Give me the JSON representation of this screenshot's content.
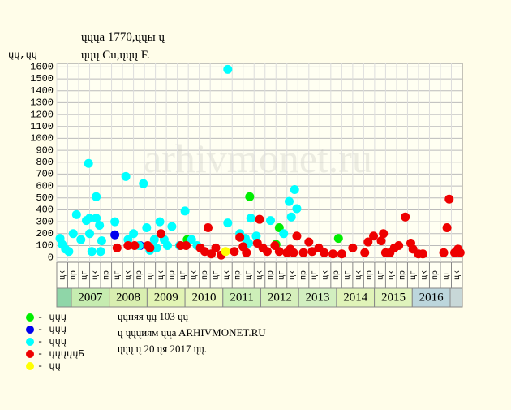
{
  "chart_data": {
    "type": "scatter",
    "title": "ųųųa 1770,ųųы ų",
    "subtitle": "ųųų Cu,ųųų F.",
    "y_label": "ųų,ųų",
    "watermark": "arhivmonet.ru",
    "ylim": [
      -40,
      1630
    ],
    "yticks": [
      0,
      100,
      200,
      300,
      400,
      500,
      600,
      700,
      800,
      900,
      1000,
      1100,
      1200,
      1300,
      1400,
      1500,
      1600
    ],
    "xlim": [
      0,
      37
    ],
    "grid": true,
    "x_labels": [
      "цк",
      "пр",
      "цг",
      "цк",
      "пр",
      "цг",
      "цк",
      "пр",
      "цг",
      "цк",
      "пр",
      "цг",
      "цк",
      "пр",
      "цг",
      "цк",
      "пр",
      "цг",
      "цк",
      "пр",
      "цг",
      "цк",
      "пр",
      "цг",
      "цк",
      "пр",
      "цг",
      "цк",
      "пр",
      "цг",
      "цк",
      "пр",
      "цг",
      "цк",
      "пр",
      "цг",
      "цк"
    ],
    "years": [
      "2007",
      "2008",
      "2009",
      "2010",
      "2011",
      "2012",
      "2013",
      "2014",
      "2015",
      "2016"
    ],
    "series": [
      {
        "name": "- ųųų",
        "color": "#00ee00",
        "x": [
          11.9,
          17.6,
          20.0,
          20.3,
          25.7
        ],
        "values": [
          150,
          510,
          110,
          250,
          160
        ]
      },
      {
        "name": "- ųųų",
        "color": "#0000ee",
        "x": [
          5.3,
          7.6
        ],
        "values": [
          190,
          100
        ]
      },
      {
        "name": "- ųųų",
        "color": "#00ffff",
        "x": [
          0.3,
          0.5,
          0.8,
          1.1,
          1.5,
          1.8,
          2.2,
          2.7,
          2.9,
          3.0,
          3.0,
          3.2,
          3.6,
          3.6,
          3.9,
          4.0,
          4.1,
          5.3,
          6.3,
          6.5,
          7.0,
          7.5,
          7.9,
          8.2,
          8.5,
          8.9,
          9.1,
          9.4,
          9.8,
          10.1,
          10.5,
          11.2,
          11.7,
          12.3,
          12.8,
          15.6,
          15.6,
          16.7,
          17.5,
          17.7,
          19.5,
          20.7,
          21.2,
          21.4,
          21.7,
          21.9,
          18.2,
          17.2
        ],
        "values": [
          160,
          110,
          70,
          50,
          200,
          360,
          150,
          310,
          790,
          330,
          200,
          50,
          510,
          330,
          270,
          50,
          140,
          300,
          680,
          150,
          200,
          100,
          620,
          250,
          60,
          150,
          80,
          300,
          150,
          100,
          260,
          100,
          390,
          150,
          100,
          1580,
          290,
          200,
          120,
          330,
          310,
          200,
          470,
          340,
          570,
          410,
          180,
          160
        ]
      },
      {
        "name": "- ųųųųųБ",
        "color": "#ee0000",
        "x": [
          5.5,
          6.5,
          7.1,
          8.3,
          8.5,
          9.5,
          11.3,
          11.8,
          13.1,
          13.8,
          13.5,
          14.1,
          14.5,
          15.0,
          16.2,
          16.7,
          17.0,
          17.3,
          18.5,
          18.3,
          18.8,
          19.2,
          19.9,
          20.3,
          21.0,
          21.3,
          21.6,
          21.9,
          22.5,
          23.0,
          23.3,
          23.9,
          24.4,
          25.2,
          26.0,
          27.0,
          28.1,
          28.4,
          28.9,
          29.6,
          29.8,
          30.0,
          30.4,
          30.8,
          31.2,
          31.8,
          32.3,
          32.5,
          33.0,
          33.4,
          35.3,
          35.6,
          35.8,
          36.3,
          36.6,
          36.8
        ],
        "values": [
          80,
          100,
          100,
          100,
          80,
          200,
          100,
          100,
          80,
          250,
          50,
          30,
          80,
          20,
          50,
          170,
          90,
          40,
          320,
          120,
          80,
          50,
          100,
          50,
          40,
          70,
          40,
          180,
          40,
          130,
          50,
          80,
          40,
          30,
          30,
          80,
          40,
          130,
          180,
          140,
          200,
          40,
          40,
          80,
          100,
          340,
          120,
          70,
          30,
          30,
          40,
          250,
          490,
          40,
          70,
          40
        ]
      },
      {
        "name": "- ųų",
        "color": "#ffff00",
        "x": [
          15.4
        ],
        "values": [
          50
        ]
      }
    ],
    "footer": [
      "ųųняя ųų 103 ųų",
      "ų ųųųиям ųųa ARHIVMONET.RU",
      "ųųų ų 20 ųя 2017 ųų."
    ]
  }
}
